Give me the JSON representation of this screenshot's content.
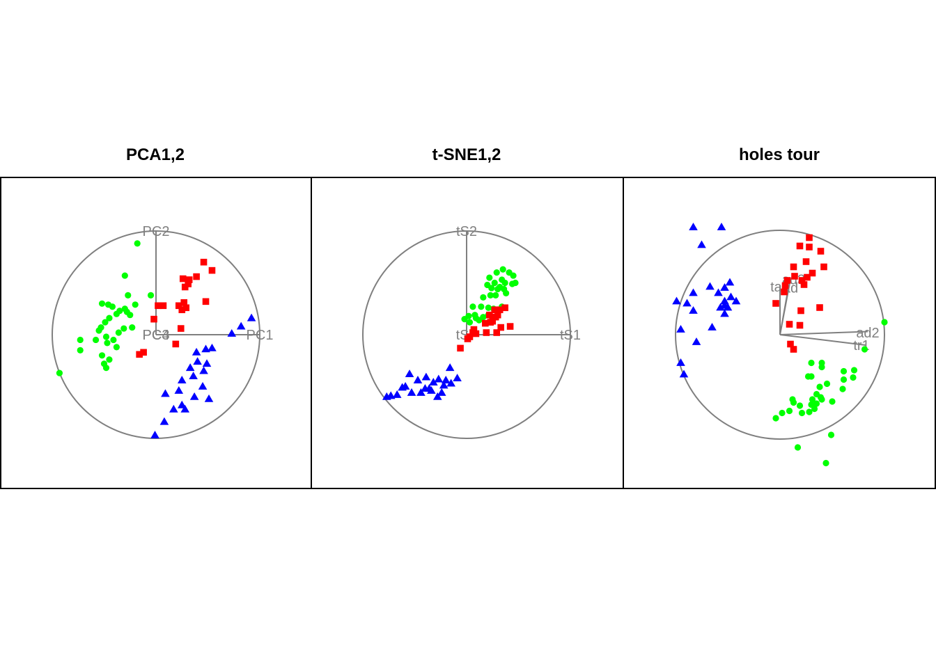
{
  "colors": {
    "group1": "#00ff00",
    "group2": "#ff0000",
    "group3": "#0000ff",
    "axis": "#808080"
  },
  "chart_data": [
    {
      "type": "scatter",
      "title": "PCA1,2",
      "axis_labels": [
        "PC2",
        "PC3",
        "PC4",
        "PC1"
      ],
      "series": [
        {
          "marker": "circle",
          "color": "#00ff00",
          "points": [
            [
              -0.18,
              0.88
            ],
            [
              -0.3,
              0.57
            ],
            [
              -0.27,
              0.38
            ],
            [
              -0.2,
              0.29
            ],
            [
              -0.05,
              0.38
            ],
            [
              -0.52,
              0.3
            ],
            [
              -0.46,
              0.29
            ],
            [
              -0.42,
              0.27
            ],
            [
              -0.35,
              0.23
            ],
            [
              -0.38,
              0.2
            ],
            [
              -0.3,
              0.25
            ],
            [
              -0.28,
              0.22
            ],
            [
              -0.25,
              0.19
            ],
            [
              -0.45,
              0.16
            ],
            [
              -0.49,
              0.12
            ],
            [
              -0.53,
              0.07
            ],
            [
              -0.55,
              0.04
            ],
            [
              -0.48,
              -0.02
            ],
            [
              -0.31,
              0.06
            ],
            [
              -0.23,
              0.07
            ],
            [
              -0.36,
              0.02
            ],
            [
              -0.41,
              -0.05
            ],
            [
              -0.47,
              -0.08
            ],
            [
              -0.58,
              -0.05
            ],
            [
              -0.73,
              -0.05
            ],
            [
              -0.73,
              -0.15
            ],
            [
              -0.38,
              -0.12
            ],
            [
              -0.52,
              -0.2
            ],
            [
              -0.45,
              -0.24
            ],
            [
              -0.5,
              -0.28
            ],
            [
              -0.48,
              -0.32
            ],
            [
              -0.93,
              -0.37
            ]
          ]
        },
        {
          "marker": "square",
          "color": "#ff0000",
          "points": [
            [
              0.46,
              0.7
            ],
            [
              0.54,
              0.62
            ],
            [
              0.39,
              0.56
            ],
            [
              0.26,
              0.54
            ],
            [
              0.32,
              0.53
            ],
            [
              0.31,
              0.49
            ],
            [
              0.28,
              0.46
            ],
            [
              0.02,
              0.28
            ],
            [
              0.07,
              0.28
            ],
            [
              0.27,
              0.31
            ],
            [
              0.48,
              0.32
            ],
            [
              0.22,
              0.28
            ],
            [
              0.29,
              0.26
            ],
            [
              0.25,
              0.24
            ],
            [
              -0.02,
              0.15
            ],
            [
              0.24,
              0.06
            ],
            [
              0.19,
              -0.09
            ],
            [
              -0.12,
              -0.17
            ],
            [
              -0.16,
              -0.19
            ]
          ]
        },
        {
          "marker": "triangle",
          "color": "#0000ff",
          "points": [
            [
              0.92,
              0.16
            ],
            [
              0.82,
              0.08
            ],
            [
              0.73,
              0.01
            ],
            [
              0.48,
              -0.14
            ],
            [
              0.54,
              -0.13
            ],
            [
              0.39,
              -0.17
            ],
            [
              0.4,
              -0.26
            ],
            [
              0.49,
              -0.28
            ],
            [
              0.33,
              -0.32
            ],
            [
              0.46,
              -0.35
            ],
            [
              0.36,
              -0.4
            ],
            [
              0.25,
              -0.44
            ],
            [
              0.45,
              -0.5
            ],
            [
              0.22,
              -0.54
            ],
            [
              0.09,
              -0.57
            ],
            [
              0.37,
              -0.6
            ],
            [
              0.51,
              -0.62
            ],
            [
              0.25,
              -0.68
            ],
            [
              0.17,
              -0.72
            ],
            [
              0.28,
              -0.72
            ],
            [
              0.08,
              -0.84
            ],
            [
              -0.01,
              -0.97
            ]
          ]
        }
      ],
      "axes": [
        {
          "label": "PC1",
          "end": [
            1,
            0
          ],
          "label_pos": [
            1,
            0
          ]
        },
        {
          "label": "PC2",
          "end": [
            0,
            1
          ],
          "label_pos": [
            0,
            1
          ]
        },
        {
          "label": "PC3",
          "end": [
            0,
            0
          ],
          "label_pos": [
            0,
            0
          ]
        },
        {
          "label": "PC4",
          "end": [
            0,
            0
          ],
          "label_pos": [
            0,
            0
          ]
        }
      ]
    },
    {
      "type": "scatter",
      "title": "t-SNE1,2",
      "axis_labels": [
        "tS2",
        "tS",
        "tS1"
      ],
      "series": [
        {
          "marker": "circle",
          "color": "#00ff00",
          "points": [
            [
              0.35,
              0.63
            ],
            [
              0.41,
              0.6
            ],
            [
              0.29,
              0.6
            ],
            [
              0.45,
              0.57
            ],
            [
              0.22,
              0.55
            ],
            [
              0.34,
              0.53
            ],
            [
              0.37,
              0.5
            ],
            [
              0.27,
              0.5
            ],
            [
              0.44,
              0.49
            ],
            [
              0.2,
              0.48
            ],
            [
              0.24,
              0.45
            ],
            [
              0.32,
              0.46
            ],
            [
              0.47,
              0.5
            ],
            [
              0.3,
              0.44
            ],
            [
              0.36,
              0.44
            ],
            [
              0.38,
              0.4
            ],
            [
              0.28,
              0.38
            ],
            [
              0.23,
              0.38
            ],
            [
              0.16,
              0.36
            ],
            [
              0.06,
              0.27
            ],
            [
              0.14,
              0.27
            ],
            [
              0.21,
              0.26
            ],
            [
              0.26,
              0.25
            ],
            [
              0.34,
              0.27
            ],
            [
              0.02,
              0.18
            ],
            [
              0.08,
              0.19
            ],
            [
              0.16,
              0.17
            ],
            [
              0.21,
              0.19
            ],
            [
              0.12,
              0.14
            ],
            [
              0.09,
              0.16
            ],
            [
              -0.02,
              0.15
            ],
            [
              0.03,
              0.12
            ]
          ]
        },
        {
          "marker": "square",
          "color": "#ff0000",
          "points": [
            [
              0.37,
              0.26
            ],
            [
              0.32,
              0.24
            ],
            [
              0.27,
              0.24
            ],
            [
              0.3,
              0.19
            ],
            [
              0.22,
              0.19
            ],
            [
              0.28,
              0.17
            ],
            [
              0.25,
              0.13
            ],
            [
              0.18,
              0.11
            ],
            [
              0.42,
              0.08
            ],
            [
              0.33,
              0.07
            ],
            [
              0.29,
              0.02
            ],
            [
              0.19,
              0.02
            ],
            [
              0.09,
              0.01
            ],
            [
              0.06,
              0.02
            ],
            [
              0.03,
              -0.02
            ],
            [
              0.01,
              -0.04
            ],
            [
              0.07,
              0.05
            ],
            [
              0.23,
              0.12
            ],
            [
              -0.06,
              -0.13
            ]
          ]
        },
        {
          "marker": "triangle",
          "color": "#0000ff",
          "points": [
            [
              -0.16,
              -0.32
            ],
            [
              -0.09,
              -0.42
            ],
            [
              -0.2,
              -0.44
            ],
            [
              -0.27,
              -0.43
            ],
            [
              -0.55,
              -0.38
            ],
            [
              -0.39,
              -0.41
            ],
            [
              -0.47,
              -0.44
            ],
            [
              -0.32,
              -0.46
            ],
            [
              -0.15,
              -0.47
            ],
            [
              -0.22,
              -0.49
            ],
            [
              -0.36,
              -0.52
            ],
            [
              -0.4,
              -0.52
            ],
            [
              -0.59,
              -0.5
            ],
            [
              -0.62,
              -0.51
            ],
            [
              -0.34,
              -0.54
            ],
            [
              -0.24,
              -0.56
            ],
            [
              -0.44,
              -0.56
            ],
            [
              -0.28,
              -0.6
            ],
            [
              -0.67,
              -0.58
            ],
            [
              -0.73,
              -0.59
            ],
            [
              -0.77,
              -0.6
            ],
            [
              -0.53,
              -0.56
            ]
          ]
        }
      ],
      "axes": [
        {
          "label": "tS1",
          "end": [
            1,
            0
          ],
          "label_pos": [
            1,
            0
          ]
        },
        {
          "label": "tS2",
          "end": [
            0,
            1
          ],
          "label_pos": [
            0,
            1
          ]
        },
        {
          "label": "tS",
          "end": [
            0,
            0
          ],
          "label_pos": [
            -0.04,
            0
          ]
        }
      ]
    },
    {
      "type": "scatter",
      "title": "holes tour",
      "axis_labels": [
        "ad3",
        "tab",
        "ad",
        "ad2",
        "tr1"
      ],
      "series": [
        {
          "marker": "circle",
          "color": "#00ff00",
          "points": [
            [
              1.0,
              0.12
            ],
            [
              0.81,
              -0.14
            ],
            [
              0.4,
              -0.27
            ],
            [
              0.4,
              -0.31
            ],
            [
              0.3,
              -0.27
            ],
            [
              0.71,
              -0.34
            ],
            [
              0.61,
              -0.35
            ],
            [
              0.7,
              -0.41
            ],
            [
              0.61,
              -0.43
            ],
            [
              0.27,
              -0.4
            ],
            [
              0.3,
              -0.4
            ],
            [
              0.45,
              -0.47
            ],
            [
              0.38,
              -0.5
            ],
            [
              0.6,
              -0.52
            ],
            [
              0.35,
              -0.57
            ],
            [
              0.39,
              -0.6
            ],
            [
              0.4,
              -0.62
            ],
            [
              0.12,
              -0.62
            ],
            [
              0.13,
              -0.65
            ],
            [
              0.31,
              -0.62
            ],
            [
              0.3,
              -0.67
            ],
            [
              0.19,
              -0.68
            ],
            [
              0.33,
              -0.71
            ],
            [
              0.5,
              -0.64
            ],
            [
              0.35,
              -0.66
            ],
            [
              0.09,
              -0.73
            ],
            [
              0.21,
              -0.75
            ],
            [
              0.02,
              -0.75
            ],
            [
              0.28,
              -0.74
            ],
            [
              -0.04,
              -0.8
            ],
            [
              0.49,
              -0.96
            ],
            [
              0.17,
              -1.08
            ],
            [
              0.44,
              -1.23
            ]
          ]
        },
        {
          "marker": "square",
          "color": "#ff0000",
          "points": [
            [
              0.28,
              0.93
            ],
            [
              0.19,
              0.85
            ],
            [
              0.28,
              0.84
            ],
            [
              0.39,
              0.8
            ],
            [
              0.25,
              0.7
            ],
            [
              0.42,
              0.65
            ],
            [
              0.13,
              0.65
            ],
            [
              0.31,
              0.59
            ],
            [
              0.14,
              0.56
            ],
            [
              0.21,
              0.52
            ],
            [
              0.26,
              0.55
            ],
            [
              0.23,
              0.48
            ],
            [
              0.07,
              0.52
            ],
            [
              0.05,
              0.47
            ],
            [
              0.04,
              0.41
            ],
            [
              -0.04,
              0.3
            ],
            [
              0.38,
              0.26
            ],
            [
              0.2,
              0.23
            ],
            [
              0.09,
              0.1
            ],
            [
              0.19,
              0.09
            ],
            [
              0.1,
              -0.09
            ],
            [
              0.13,
              -0.14
            ]
          ]
        },
        {
          "marker": "triangle",
          "color": "#0000ff",
          "points": [
            [
              -0.83,
              1.03
            ],
            [
              -0.56,
              1.03
            ],
            [
              -0.75,
              0.86
            ],
            [
              -0.67,
              0.46
            ],
            [
              -0.48,
              0.5
            ],
            [
              -0.53,
              0.45
            ],
            [
              -0.47,
              0.36
            ],
            [
              -0.59,
              0.4
            ],
            [
              -0.83,
              0.4
            ],
            [
              -0.99,
              0.32
            ],
            [
              -0.89,
              0.3
            ],
            [
              -0.53,
              0.32
            ],
            [
              -0.42,
              0.32
            ],
            [
              -0.53,
              0.28
            ],
            [
              -0.57,
              0.26
            ],
            [
              -0.5,
              0.26
            ],
            [
              -0.53,
              0.2
            ],
            [
              -0.83,
              0.23
            ],
            [
              -0.65,
              0.07
            ],
            [
              -0.95,
              0.05
            ],
            [
              -0.8,
              -0.07
            ],
            [
              -0.95,
              -0.27
            ],
            [
              -0.92,
              -0.38
            ]
          ]
        }
      ],
      "axes": [
        {
          "label": "ad2",
          "end": [
            0.84,
            0.03
          ],
          "label_pos": [
            0.84,
            0.02
          ]
        },
        {
          "label": "tr1",
          "end": [
            0.82,
            -0.1
          ],
          "label_pos": [
            0.78,
            -0.1
          ]
        },
        {
          "label": "ad3",
          "end": [
            0.1,
            0.53
          ],
          "label_pos": [
            0.13,
            0.53
          ]
        },
        {
          "label": "tab",
          "end": [
            0.0,
            0.47
          ],
          "label_pos": [
            0.0,
            0.46
          ]
        },
        {
          "label": "ad",
          "end": [
            0.08,
            0.45
          ],
          "label_pos": [
            0.1,
            0.45
          ]
        }
      ]
    }
  ]
}
